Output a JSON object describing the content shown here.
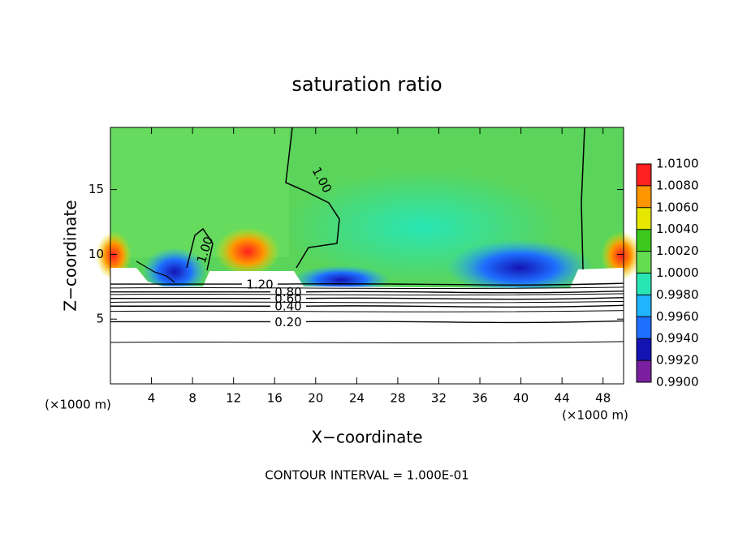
{
  "chart_data": {
    "type": "contour",
    "title": "saturation ratio",
    "x_label": "X−coordinate",
    "y_label": "Z−coordinate",
    "x_unit": "(×1000 m)",
    "y_unit": "(×1000 m)",
    "note": "CONTOUR INTERVAL = 1.000E-01",
    "xlim": [
      0,
      50
    ],
    "xticks": [
      4,
      8,
      12,
      16,
      20,
      24,
      28,
      32,
      36,
      40,
      44,
      48
    ],
    "ylim": [
      0,
      19.8
    ],
    "yticks": [
      5,
      10,
      15
    ],
    "contours": [
      {
        "value": 0.2,
        "label": "0.20"
      },
      {
        "value": 0.4,
        "label": "0.40"
      },
      {
        "value": 0.6,
        "label": "0.60"
      },
      {
        "value": 0.8,
        "label": "0.80"
      },
      {
        "value": 1.2,
        "label": "1.20"
      },
      {
        "value": 1.0,
        "label": "1.00"
      }
    ],
    "colorbar": {
      "levels": [
        {
          "value": 0.99,
          "label": "0.9900"
        },
        {
          "value": 0.992,
          "label": "0.9920"
        },
        {
          "value": 0.994,
          "label": "0.9940"
        },
        {
          "value": 0.996,
          "label": "0.9960"
        },
        {
          "value": 0.998,
          "label": "0.9980"
        },
        {
          "value": 1.0,
          "label": "1.0000"
        },
        {
          "value": 1.002,
          "label": "1.0020"
        },
        {
          "value": 1.004,
          "label": "1.0040"
        },
        {
          "value": 1.006,
          "label": "1.0060"
        },
        {
          "value": 1.008,
          "label": "1.0080"
        },
        {
          "value": 1.01,
          "label": "1.0100"
        }
      ],
      "colors": [
        "#7a1fa0",
        "#1414b4",
        "#1e6eff",
        "#20b4ff",
        "#28e6b4",
        "#64dc50",
        "#3cc81e",
        "#e6e600",
        "#ff9600",
        "#ff2020"
      ]
    }
  }
}
